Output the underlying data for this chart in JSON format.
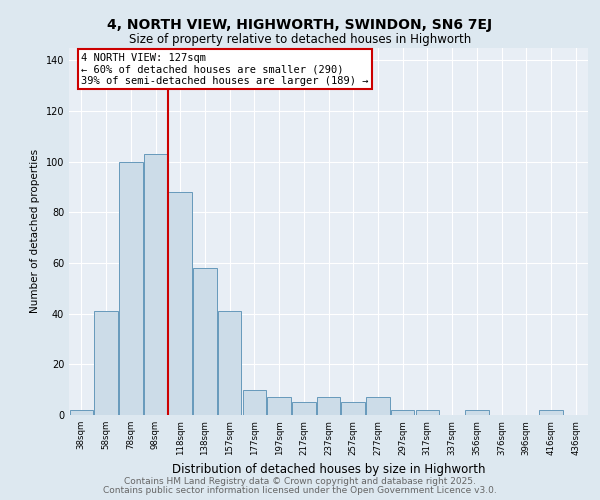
{
  "title": "4, NORTH VIEW, HIGHWORTH, SWINDON, SN6 7EJ",
  "subtitle": "Size of property relative to detached houses in Highworth",
  "xlabel": "Distribution of detached houses by size in Highworth",
  "ylabel": "Number of detached properties",
  "categories": [
    "38sqm",
    "58sqm",
    "78sqm",
    "98sqm",
    "118sqm",
    "138sqm",
    "157sqm",
    "177sqm",
    "197sqm",
    "217sqm",
    "237sqm",
    "257sqm",
    "277sqm",
    "297sqm",
    "317sqm",
    "337sqm",
    "356sqm",
    "376sqm",
    "396sqm",
    "416sqm",
    "436sqm"
  ],
  "values": [
    2,
    41,
    100,
    103,
    88,
    58,
    41,
    10,
    7,
    5,
    7,
    5,
    7,
    2,
    2,
    0,
    2,
    0,
    0,
    2,
    0
  ],
  "bar_color": "#ccdce8",
  "bar_edge_color": "#6699bb",
  "vline_x": 3.5,
  "vline_color": "#cc0000",
  "annotation_text": "4 NORTH VIEW: 127sqm\n← 60% of detached houses are smaller (290)\n39% of semi-detached houses are larger (189) →",
  "annotation_box_color": "#ffffff",
  "annotation_box_edge": "#cc0000",
  "ylim": [
    0,
    145
  ],
  "yticks": [
    0,
    20,
    40,
    60,
    80,
    100,
    120,
    140
  ],
  "bg_color": "#dde8f0",
  "plot_bg_color": "#e8eef5",
  "grid_color": "#ffffff",
  "footer_line1": "Contains HM Land Registry data © Crown copyright and database right 2025.",
  "footer_line2": "Contains public sector information licensed under the Open Government Licence v3.0.",
  "title_fontsize": 10,
  "subtitle_fontsize": 8.5,
  "xlabel_fontsize": 8.5,
  "ylabel_fontsize": 7.5,
  "footer_fontsize": 6.5,
  "annot_fontsize": 7.5
}
